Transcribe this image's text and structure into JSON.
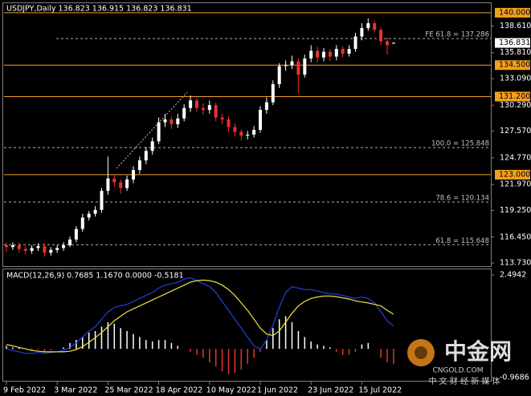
{
  "chart_data": [
    {
      "type": "candlestick",
      "title": "USDJPY,Daily  136.823 136.915 136.823 136.831",
      "categories": [
        "9 Feb 2022",
        null,
        null,
        null,
        null,
        null,
        null,
        null,
        "3 Mar 2022",
        null,
        null,
        null,
        null,
        null,
        null,
        null,
        "25 Mar 2022",
        null,
        null,
        null,
        null,
        null,
        null,
        null,
        "18 Apr 2022",
        null,
        null,
        null,
        null,
        null,
        null,
        null,
        "10 May 2022",
        null,
        null,
        null,
        null,
        null,
        null,
        null,
        "1 Jun 2022",
        null,
        null,
        null,
        null,
        null,
        null,
        null,
        "23 Jun 2022",
        null,
        null,
        null,
        null,
        null,
        null,
        null,
        "15 Jul 2022",
        null,
        null,
        null,
        null,
        null
      ],
      "open": [
        115.6,
        115.4,
        115.6,
        115.2,
        115.0,
        115.3,
        115.5,
        114.8,
        115.1,
        115.3,
        115.6,
        116.2,
        117.3,
        118.5,
        118.9,
        119.3,
        121.3,
        122.6,
        122.2,
        121.6,
        122.5,
        123.5,
        124.5,
        125.5,
        126.5,
        128.5,
        128.8,
        128.3,
        128.9,
        130.0,
        130.8,
        130.0,
        129.8,
        130.3,
        129.0,
        128.8,
        128.0,
        127.5,
        127.1,
        127.2,
        127.7,
        129.8,
        130.6,
        132.5,
        134.4,
        134.5,
        134.9,
        133.5,
        135.2,
        136.0,
        135.3,
        135.9,
        135.4,
        136.2,
        135.7,
        136.2,
        137.5,
        138.4,
        138.9,
        138.2,
        137.0,
        136.823
      ],
      "high": [
        115.9,
        115.9,
        115.9,
        115.5,
        115.6,
        115.8,
        115.8,
        115.4,
        115.6,
        115.9,
        116.5,
        117.6,
        118.9,
        119.2,
        119.7,
        121.6,
        124.9,
        123.0,
        122.5,
        122.9,
        123.9,
        124.9,
        125.9,
        126.9,
        129.0,
        129.4,
        129.1,
        129.4,
        130.4,
        131.3,
        131.1,
        130.5,
        130.8,
        130.6,
        129.4,
        129.1,
        128.4,
        127.8,
        127.6,
        128.1,
        130.2,
        131.1,
        132.9,
        134.7,
        135.0,
        135.5,
        135.2,
        135.6,
        136.6,
        136.4,
        136.3,
        136.2,
        136.6,
        136.5,
        136.6,
        137.9,
        138.9,
        139.4,
        139.2,
        138.5,
        137.4,
        136.915
      ],
      "low": [
        114.9,
        115.1,
        114.8,
        114.6,
        114.7,
        115.0,
        114.4,
        114.5,
        114.8,
        115.0,
        115.4,
        115.9,
        117.0,
        118.2,
        118.6,
        119.0,
        120.9,
        121.7,
        121.0,
        121.3,
        122.1,
        123.1,
        124.1,
        125.1,
        126.2,
        128.0,
        127.8,
        127.9,
        128.6,
        129.6,
        129.6,
        129.3,
        129.4,
        128.6,
        128.3,
        127.5,
        127.0,
        126.6,
        126.7,
        126.9,
        127.4,
        129.4,
        130.3,
        132.1,
        133.9,
        134.1,
        131.5,
        133.2,
        134.8,
        134.8,
        134.9,
        134.9,
        135.0,
        135.3,
        135.4,
        135.9,
        137.1,
        138.1,
        137.9,
        136.6,
        135.6,
        136.823
      ],
      "close": [
        115.4,
        115.6,
        115.2,
        115.0,
        115.3,
        115.5,
        114.8,
        115.1,
        115.3,
        115.6,
        116.2,
        117.3,
        118.5,
        118.9,
        119.3,
        121.3,
        122.6,
        122.2,
        121.6,
        122.5,
        123.5,
        124.5,
        125.5,
        126.5,
        128.5,
        128.8,
        128.3,
        128.9,
        130.0,
        130.8,
        130.0,
        129.8,
        130.3,
        129.0,
        128.8,
        128.0,
        127.5,
        127.1,
        127.2,
        127.7,
        129.8,
        130.6,
        132.5,
        134.4,
        134.5,
        134.9,
        133.5,
        135.2,
        136.0,
        135.3,
        135.9,
        135.4,
        136.2,
        135.7,
        136.2,
        137.5,
        138.4,
        138.9,
        138.2,
        137.0,
        136.6,
        136.831
      ],
      "up_color": "#ffffff",
      "down_color": "#e8332c",
      "ylim": [
        113.4,
        141.0
      ],
      "yticks": [
        {
          "value": 138.61,
          "label": "138.610"
        },
        {
          "value": 135.81,
          "label": "135.810"
        },
        {
          "value": 133.09,
          "label": "133.090"
        },
        {
          "value": 130.29,
          "label": "130.290"
        },
        {
          "value": 127.57,
          "label": "127.570"
        },
        {
          "value": 124.77,
          "label": "124.770"
        },
        {
          "value": 121.97,
          "label": "121.970"
        },
        {
          "value": 119.25,
          "label": "119.250"
        },
        {
          "value": 116.45,
          "label": "116.450"
        },
        {
          "value": 113.73,
          "label": "113.730"
        }
      ],
      "levels": [
        {
          "value": 140.0,
          "label": "140.000"
        },
        {
          "value": 134.5,
          "label": "134.500"
        },
        {
          "value": 131.2,
          "label": "131.200"
        },
        {
          "value": 123.0,
          "label": "123.000"
        }
      ],
      "level_color": "#f0a020",
      "last_price": {
        "value": 136.831,
        "label": "136.831"
      },
      "fib_levels": [
        {
          "value": 137.286,
          "label": "FE 61.8 = 137.286"
        },
        {
          "value": 125.848,
          "label": "100.0 = 125.848"
        },
        {
          "value": 120.134,
          "label": "78.6 = 120.134"
        },
        {
          "value": 115.648,
          "label": "61.8 = 115.648"
        }
      ]
    },
    {
      "type": "macd",
      "title": "MACD(12,26,9) 0.7685 1.1670 0.0000 -0.5181",
      "ylim": [
        -1.075,
        2.654
      ],
      "yticks": [
        2.4942,
        -0.9686
      ],
      "series": [
        {
          "style": "bar",
          "up_color": "#ffffff",
          "down_color": "#e8332c",
          "values": [
            0.1,
            0.05,
            0.05,
            0.0,
            -0.05,
            -0.05,
            -0.1,
            -0.05,
            0.0,
            0.05,
            0.2,
            0.3,
            0.4,
            0.55,
            0.6,
            0.75,
            0.9,
            0.85,
            0.7,
            0.6,
            0.5,
            0.4,
            0.3,
            0.25,
            0.3,
            0.3,
            0.2,
            0.1,
            0.0,
            -0.1,
            -0.2,
            -0.3,
            -0.45,
            -0.6,
            -0.75,
            -0.85,
            -0.8,
            -0.7,
            -0.5,
            -0.3,
            -0.1,
            0.3,
            0.7,
            1.0,
            1.1,
            0.9,
            0.6,
            0.4,
            0.25,
            0.15,
            0.1,
            0.05,
            -0.1,
            -0.2,
            -0.2,
            -0.1,
            0.15,
            0.2,
            0.0,
            -0.3,
            -0.45,
            -0.5181
          ]
        },
        {
          "style": "line",
          "color": "#2040e0",
          "values": [
            0.0,
            -0.05,
            -0.1,
            -0.15,
            -0.15,
            -0.12,
            -0.15,
            -0.12,
            -0.1,
            -0.05,
            0.05,
            0.2,
            0.4,
            0.6,
            0.75,
            1.0,
            1.25,
            1.4,
            1.45,
            1.5,
            1.6,
            1.7,
            1.8,
            1.9,
            2.05,
            2.15,
            2.2,
            2.25,
            2.35,
            2.4,
            2.3,
            2.2,
            2.1,
            1.9,
            1.6,
            1.3,
            1.0,
            0.7,
            0.4,
            0.1,
            0.0,
            0.3,
            0.8,
            1.4,
            1.9,
            2.1,
            2.05,
            2.0,
            2.0,
            1.95,
            1.9,
            1.85,
            1.85,
            1.8,
            1.75,
            1.7,
            1.75,
            1.7,
            1.55,
            1.25,
            0.95,
            0.7685
          ]
        },
        {
          "style": "line",
          "color": "#f0e040",
          "values": [
            0.15,
            0.1,
            0.05,
            0.0,
            -0.05,
            -0.08,
            -0.1,
            -0.1,
            -0.1,
            -0.1,
            -0.08,
            -0.02,
            0.08,
            0.22,
            0.38,
            0.55,
            0.75,
            0.95,
            1.1,
            1.25,
            1.35,
            1.45,
            1.55,
            1.65,
            1.75,
            1.85,
            1.95,
            2.05,
            2.15,
            2.25,
            2.3,
            2.32,
            2.3,
            2.25,
            2.15,
            2.0,
            1.8,
            1.55,
            1.3,
            1.0,
            0.7,
            0.5,
            0.45,
            0.6,
            0.9,
            1.2,
            1.45,
            1.6,
            1.7,
            1.75,
            1.78,
            1.78,
            1.76,
            1.72,
            1.68,
            1.62,
            1.58,
            1.55,
            1.5,
            1.45,
            1.3,
            1.167
          ]
        }
      ]
    }
  ],
  "watermark": {
    "brand": "中金网",
    "site": "CNGOLD.COM",
    "tagline": "中 文 财 经 新 媒 体"
  }
}
